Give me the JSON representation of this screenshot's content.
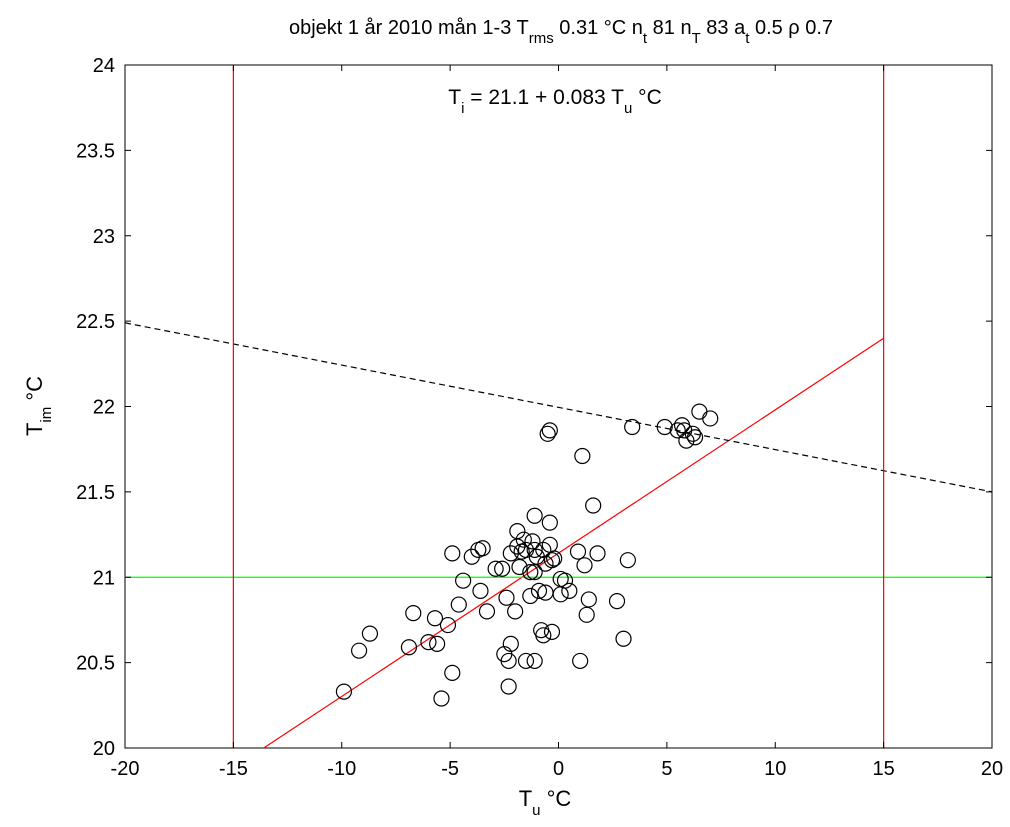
{
  "chart_data": {
    "type": "scatter",
    "title": {
      "segments": [
        {
          "t": "objekt 1  år 2010  mån 1-3  T"
        },
        {
          "t": "rms",
          "sub": true
        },
        {
          "t": " 0.31 °C   n"
        },
        {
          "t": "t",
          "sub": true
        },
        {
          "t": " 81   n"
        },
        {
          "t": "T",
          "sub": true
        },
        {
          "t": " 83   a"
        },
        {
          "t": "t",
          "sub": true
        },
        {
          "t": " 0.5   ρ 0.7"
        }
      ]
    },
    "xlabel": {
      "main": "T",
      "sub": "u",
      "rest": "  °C"
    },
    "ylabel": {
      "main": "T",
      "sub": "im",
      "rest": "  °C"
    },
    "annotation": {
      "main": "T",
      "sub": "i",
      "rest": " = 21.1 + 0.083 T",
      "sub2": "u",
      "rest2": " °C"
    },
    "xlim": [
      -20,
      20
    ],
    "ylim": [
      20,
      24
    ],
    "xticks": [
      -20,
      -15,
      -10,
      -5,
      0,
      5,
      10,
      15,
      20
    ],
    "yticks": [
      20,
      20.5,
      21,
      21.5,
      22,
      22.5,
      23,
      23.5,
      24
    ],
    "grid": false,
    "colors": {
      "points": "#000000",
      "regression": "#ff0000",
      "limits": "#ff0000",
      "reference": "#00ff00",
      "dashed": "#000000"
    },
    "lines": [
      {
        "kind": "regression",
        "style": "solid",
        "x": [
          -13.6,
          15
        ],
        "y": [
          20,
          22.4
        ]
      },
      {
        "kind": "dashed",
        "style": "dashed",
        "x": [
          -20,
          20
        ],
        "y": [
          22.49,
          21.5
        ]
      },
      {
        "kind": "reference",
        "style": "solid",
        "x": [
          -20,
          20
        ],
        "y": [
          21.0,
          21.0
        ]
      },
      {
        "kind": "limit",
        "style": "solid",
        "x": [
          -15,
          -15
        ],
        "y": [
          20,
          24
        ]
      },
      {
        "kind": "limit",
        "style": "solid",
        "x": [
          15,
          15
        ],
        "y": [
          20,
          24
        ]
      }
    ],
    "points": [
      [
        -9.9,
        20.33
      ],
      [
        -9.2,
        20.57
      ],
      [
        -8.7,
        20.67
      ],
      [
        -6.9,
        20.59
      ],
      [
        -6.7,
        20.79
      ],
      [
        -6.0,
        20.62
      ],
      [
        -5.7,
        20.76
      ],
      [
        -5.6,
        20.61
      ],
      [
        -5.4,
        20.29
      ],
      [
        -5.1,
        20.72
      ],
      [
        -4.9,
        20.44
      ],
      [
        -4.9,
        21.14
      ],
      [
        -4.6,
        20.84
      ],
      [
        -4.4,
        20.98
      ],
      [
        -4.0,
        21.12
      ],
      [
        -3.7,
        21.16
      ],
      [
        -3.5,
        21.17
      ],
      [
        -3.6,
        20.92
      ],
      [
        -3.3,
        20.8
      ],
      [
        -2.9,
        21.05
      ],
      [
        -2.6,
        21.05
      ],
      [
        -2.4,
        20.88
      ],
      [
        -2.5,
        20.55
      ],
      [
        -2.3,
        20.51
      ],
      [
        -2.2,
        20.61
      ],
      [
        -2.3,
        20.36
      ],
      [
        -2.2,
        21.14
      ],
      [
        -2.0,
        20.8
      ],
      [
        -1.9,
        21.27
      ],
      [
        -1.9,
        21.18
      ],
      [
        -1.8,
        21.06
      ],
      [
        -1.7,
        21.15
      ],
      [
        -1.6,
        21.22
      ],
      [
        -1.5,
        21.16
      ],
      [
        -1.5,
        20.51
      ],
      [
        -1.3,
        21.03
      ],
      [
        -1.3,
        20.89
      ],
      [
        -1.2,
        21.21
      ],
      [
        -1.1,
        21.36
      ],
      [
        -1.1,
        21.16
      ],
      [
        -1.0,
        21.12
      ],
      [
        -1.1,
        21.03
      ],
      [
        -1.1,
        20.51
      ],
      [
        -0.9,
        20.92
      ],
      [
        -0.8,
        20.69
      ],
      [
        -0.7,
        20.66
      ],
      [
        -0.7,
        21.16
      ],
      [
        -0.6,
        21.08
      ],
      [
        -0.6,
        20.91
      ],
      [
        -0.5,
        21.84
      ],
      [
        -0.4,
        21.86
      ],
      [
        -0.4,
        21.19
      ],
      [
        -0.4,
        21.32
      ],
      [
        -0.3,
        21.1
      ],
      [
        -0.3,
        20.68
      ],
      [
        -0.2,
        21.11
      ],
      [
        0.1,
        20.99
      ],
      [
        0.1,
        20.9
      ],
      [
        0.3,
        20.98
      ],
      [
        0.5,
        20.92
      ],
      [
        0.9,
        21.15
      ],
      [
        1.0,
        20.51
      ],
      [
        1.1,
        21.71
      ],
      [
        1.2,
        21.07
      ],
      [
        1.3,
        20.78
      ],
      [
        1.4,
        20.87
      ],
      [
        1.6,
        21.42
      ],
      [
        1.8,
        21.14
      ],
      [
        2.7,
        20.86
      ],
      [
        3.0,
        20.64
      ],
      [
        3.2,
        21.1
      ],
      [
        3.4,
        21.88
      ],
      [
        4.9,
        21.88
      ],
      [
        5.5,
        21.86
      ],
      [
        5.7,
        21.89
      ],
      [
        5.8,
        21.86
      ],
      [
        5.9,
        21.8
      ],
      [
        6.2,
        21.84
      ],
      [
        6.3,
        21.82
      ],
      [
        6.5,
        21.97
      ],
      [
        7.0,
        21.93
      ]
    ]
  }
}
